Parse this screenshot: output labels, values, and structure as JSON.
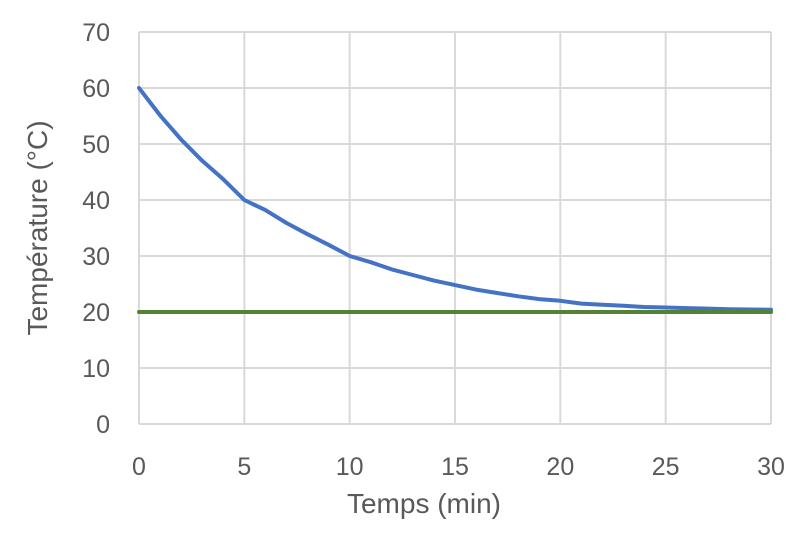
{
  "chart_data": {
    "type": "line",
    "title": "",
    "xlabel": "Temps (min)",
    "ylabel": "Température (°C)",
    "xlim": [
      0,
      30
    ],
    "ylim": [
      0,
      70
    ],
    "xticks": [
      0,
      5,
      10,
      15,
      20,
      25,
      30
    ],
    "yticks": [
      0,
      10,
      20,
      30,
      40,
      50,
      60,
      70
    ],
    "grid": true,
    "legend": "none",
    "series": [
      {
        "color": "#4472C4",
        "x": [
          0,
          1,
          2,
          3,
          4,
          5,
          6,
          7,
          8,
          9,
          10,
          11,
          12,
          13,
          14,
          15,
          16,
          17,
          18,
          19,
          20,
          21,
          22,
          23,
          24,
          25,
          26,
          27,
          28,
          29,
          30
        ],
        "y": [
          60.0,
          55.1,
          50.8,
          47.0,
          43.7,
          40.0,
          38.2,
          35.9,
          33.9,
          32.0,
          30.0,
          28.9,
          27.6,
          26.6,
          25.6,
          24.8,
          24.0,
          23.4,
          22.8,
          22.3,
          22.0,
          21.5,
          21.3,
          21.1,
          20.9,
          20.8,
          20.7,
          20.6,
          20.5,
          20.45,
          20.4
        ]
      },
      {
        "color": "#548235",
        "x": [
          0,
          30
        ],
        "y": [
          20,
          20
        ]
      }
    ]
  }
}
